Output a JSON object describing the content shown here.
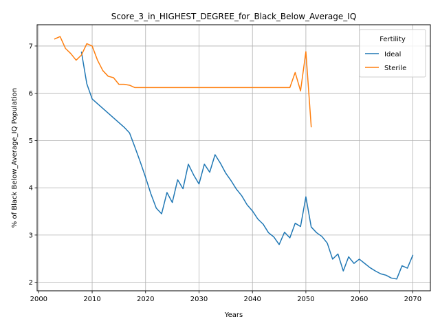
{
  "chart_data": {
    "type": "line",
    "title": "Score_3_in_HIGHEST_DEGREE_for_Black_Below_Average_IQ",
    "xlabel": "Years",
    "ylabel": "% of Black Below_Average_IQ Population",
    "xlim": [
      1999.7,
      2073.3
    ],
    "ylim": [
      1.82,
      7.45
    ],
    "xticks": [
      2000,
      2010,
      2020,
      2030,
      2040,
      2050,
      2060,
      2070
    ],
    "yticks": [
      2,
      3,
      4,
      5,
      6,
      7
    ],
    "grid": true,
    "legend": {
      "title": "Fertility",
      "placement": "top-right"
    },
    "series": [
      {
        "name": "Ideal",
        "color": "#1f77b4",
        "x": [
          2008,
          2009,
          2010,
          2011,
          2012,
          2013,
          2014,
          2015,
          2016,
          2017,
          2018,
          2019,
          2020,
          2021,
          2022,
          2023,
          2024,
          2025,
          2026,
          2027,
          2028,
          2029,
          2030,
          2031,
          2032,
          2033,
          2034,
          2035,
          2036,
          2037,
          2038,
          2039,
          2040,
          2041,
          2042,
          2043,
          2044,
          2045,
          2046,
          2047,
          2048,
          2049,
          2050,
          2051,
          2052,
          2053,
          2054,
          2055,
          2056,
          2057,
          2058,
          2059,
          2060,
          2061,
          2062,
          2063,
          2064,
          2065,
          2066,
          2067,
          2068,
          2069,
          2070
        ],
        "y": [
          6.87,
          6.2,
          5.88,
          5.78,
          5.68,
          5.58,
          5.48,
          5.38,
          5.28,
          5.16,
          4.86,
          4.55,
          4.22,
          3.87,
          3.57,
          3.45,
          3.9,
          3.69,
          4.17,
          3.98,
          4.5,
          4.27,
          4.08,
          4.5,
          4.33,
          4.7,
          4.52,
          4.31,
          4.15,
          3.97,
          3.83,
          3.64,
          3.51,
          3.34,
          3.23,
          3.05,
          2.96,
          2.8,
          3.06,
          2.94,
          3.25,
          3.18,
          3.81,
          3.17,
          3.05,
          2.97,
          2.83,
          2.49,
          2.6,
          2.24,
          2.54,
          2.4,
          2.49,
          2.4,
          2.31,
          2.24,
          2.18,
          2.15,
          2.09,
          2.07,
          2.35,
          2.3,
          2.57
        ]
      },
      {
        "name": "Sterile",
        "color": "#ff7f0e",
        "x": [
          2003,
          2004,
          2005,
          2006,
          2007,
          2008,
          2009,
          2010,
          2011,
          2012,
          2013,
          2014,
          2015,
          2016,
          2017,
          2018,
          2019,
          2020,
          2025,
          2030,
          2035,
          2040,
          2045,
          2046,
          2047,
          2048,
          2049,
          2050,
          2051
        ],
        "y": [
          7.15,
          7.2,
          6.95,
          6.84,
          6.7,
          6.81,
          7.05,
          7.0,
          6.7,
          6.48,
          6.36,
          6.33,
          6.19,
          6.19,
          6.17,
          6.12,
          6.12,
          6.12,
          6.12,
          6.12,
          6.12,
          6.12,
          6.12,
          6.12,
          6.12,
          6.44,
          6.05,
          6.88,
          5.29
        ]
      }
    ]
  }
}
